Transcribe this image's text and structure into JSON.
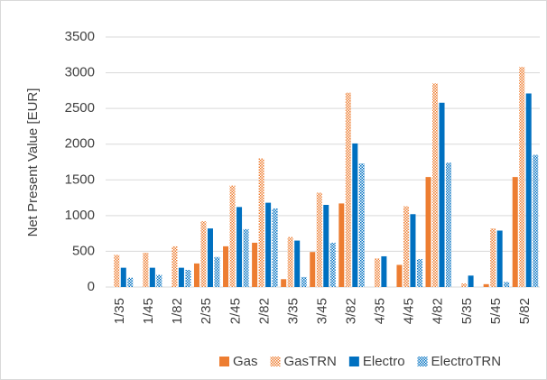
{
  "chart_data": {
    "type": "bar",
    "y_label": "Net Present Value [EUR]",
    "categories": [
      "1/35",
      "1/45",
      "1/82",
      "2/35",
      "2/45",
      "2/82",
      "3/35",
      "3/45",
      "3/82",
      "4/35",
      "4/45",
      "4/82",
      "5/35",
      "5/45",
      "5/82"
    ],
    "series": [
      {
        "name": "Gas",
        "color": "#ed7d31",
        "pattern": "solid",
        "values": [
          0,
          0,
          0,
          330,
          570,
          620,
          110,
          490,
          1170,
          0,
          310,
          1540,
          0,
          40,
          1540
        ]
      },
      {
        "name": "GasTRN",
        "color": "#ed7d31",
        "pattern": "dotted",
        "values": [
          450,
          480,
          570,
          920,
          1420,
          1800,
          700,
          1320,
          2720,
          400,
          1130,
          2850,
          50,
          820,
          3080
        ]
      },
      {
        "name": "Electro",
        "color": "#0070c0",
        "pattern": "solid",
        "values": [
          270,
          270,
          270,
          820,
          1120,
          1180,
          650,
          1150,
          2010,
          430,
          1020,
          2580,
          160,
          790,
          2710
        ]
      },
      {
        "name": "ElectroTRN",
        "color": "#0070c0",
        "pattern": "dotted",
        "values": [
          130,
          170,
          240,
          420,
          810,
          1100,
          140,
          620,
          1730,
          0,
          390,
          1740,
          0,
          70,
          1850
        ]
      }
    ],
    "ylim": [
      0,
      3500
    ],
    "yticks": [
      0,
      500,
      1000,
      1500,
      2000,
      2500,
      3000,
      3500
    ],
    "grid": true
  }
}
